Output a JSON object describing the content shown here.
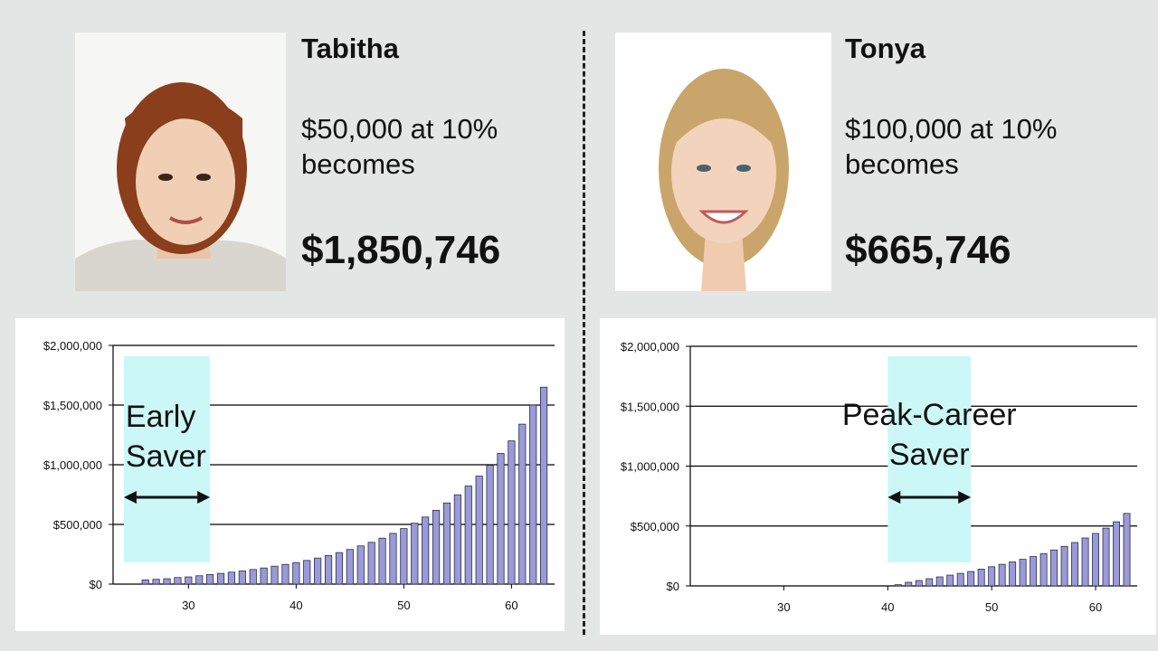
{
  "left": {
    "name": "Tabitha",
    "description": "$50,000 at 10%\nbecomes",
    "amount": "$1,850,746",
    "photo_icon": "woman-portrait-photo"
  },
  "right": {
    "name": "Tonya",
    "description": "$100,000 at 10%\nbecomes",
    "amount": "$665,746",
    "photo_icon": "woman-portrait-photo"
  },
  "chart_data": [
    {
      "type": "bar",
      "title": "",
      "xlabel": "",
      "ylabel": "",
      "x": [
        26,
        27,
        28,
        29,
        30,
        31,
        32,
        33,
        34,
        35,
        36,
        37,
        38,
        39,
        40,
        41,
        42,
        43,
        44,
        45,
        46,
        47,
        48,
        49,
        50,
        51,
        52,
        53,
        54,
        55,
        56,
        57,
        58,
        59,
        60,
        61,
        62,
        63
      ],
      "values": [
        35000,
        40000,
        45000,
        55000,
        60000,
        70000,
        80000,
        90000,
        100000,
        110000,
        122000,
        135000,
        150000,
        165000,
        180000,
        198000,
        218000,
        240000,
        264000,
        290000,
        320000,
        350000,
        385000,
        425000,
        465000,
        510000,
        562000,
        618000,
        680000,
        748000,
        822000,
        905000,
        995000,
        1095000,
        1200000,
        1340000,
        1500000,
        1650000
      ],
      "x_ticks": [
        30,
        40,
        50,
        60
      ],
      "y_ticks": [
        "$0",
        "$500,000",
        "$1,000,000",
        "$1,500,000",
        "$2,000,000"
      ],
      "ylim": [
        0,
        2000000
      ],
      "xlim": [
        23,
        64
      ],
      "grid": true,
      "bar_color": "#9a9ad6",
      "annotation": {
        "text_lines": [
          "Early",
          "Saver"
        ],
        "span": [
          24,
          32
        ],
        "color": "#ccf7f7"
      }
    },
    {
      "type": "bar",
      "title": "",
      "xlabel": "",
      "ylabel": "",
      "x": [
        41,
        42,
        43,
        44,
        45,
        46,
        47,
        48,
        49,
        50,
        51,
        52,
        53,
        54,
        55,
        56,
        57,
        58,
        59,
        60,
        61,
        62,
        63
      ],
      "values": [
        10000,
        30000,
        45000,
        60000,
        75000,
        90000,
        105000,
        120000,
        140000,
        160000,
        180000,
        200000,
        222000,
        245000,
        270000,
        300000,
        330000,
        362000,
        400000,
        438000,
        482000,
        535000,
        605000
      ],
      "x_ticks": [
        30,
        40,
        50,
        60
      ],
      "y_ticks": [
        "$0",
        "$500,000",
        "$1,000,000",
        "$1,500,000",
        "$2,000,000"
      ],
      "ylim": [
        0,
        2000000
      ],
      "xlim": [
        21,
        64
      ],
      "grid": true,
      "bar_color": "#9a9ad6",
      "annotation": {
        "text_lines": [
          "Peak-Career",
          "Saver"
        ],
        "span": [
          40,
          48
        ],
        "color": "#ccf7f7"
      }
    }
  ]
}
